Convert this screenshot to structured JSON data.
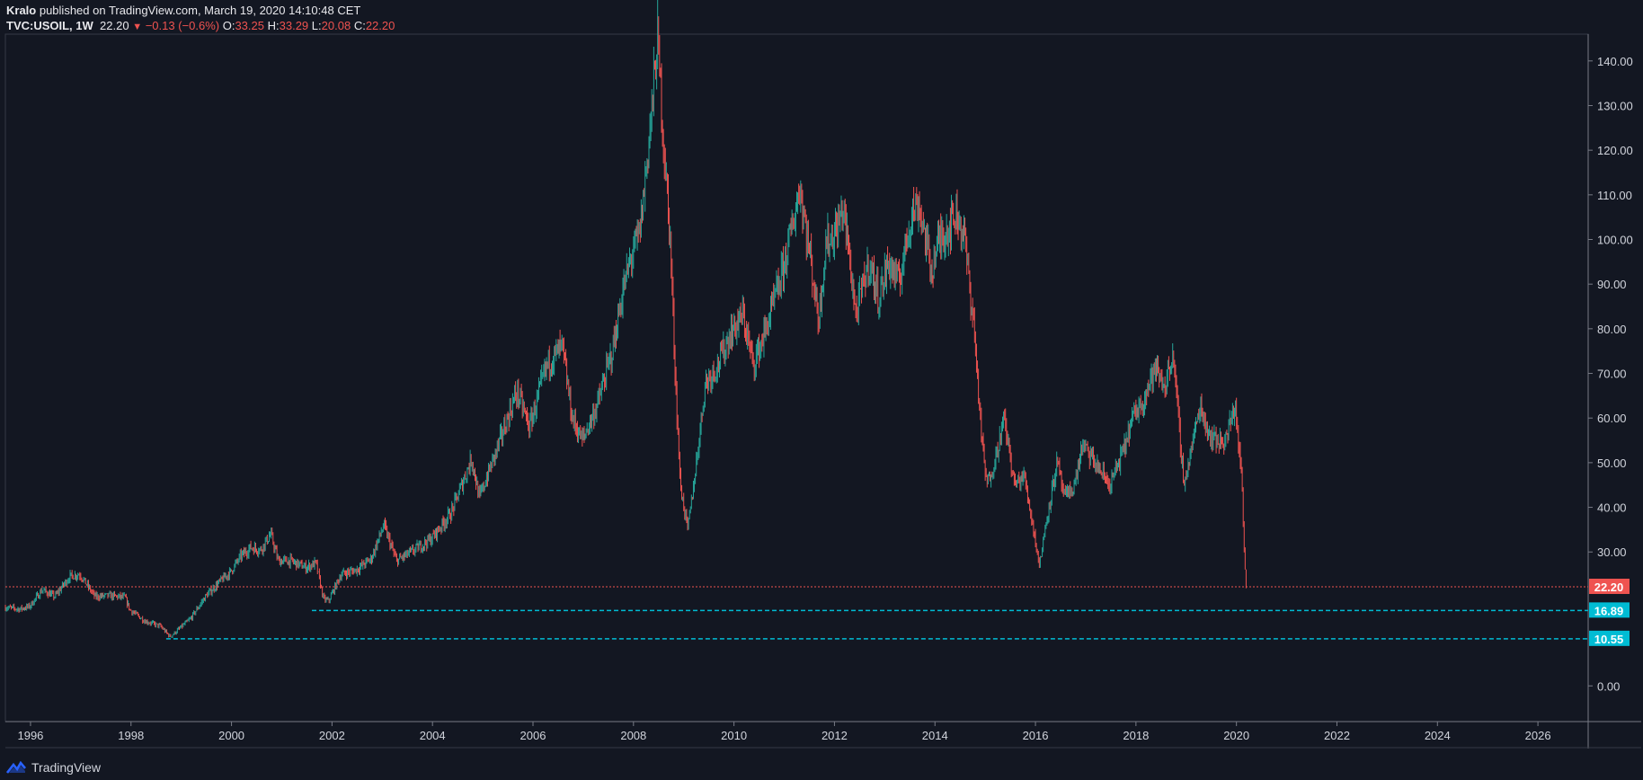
{
  "header": {
    "author": "Kralo",
    "published": " published on TradingView.com, March 19, 2020 14:10:48 CET",
    "symbol": "TVC:USOIL, 1W",
    "last": "22.20",
    "change": "−0.13 (−0.6%)",
    "o_label": "O:",
    "o_value": "33.25",
    "h_label": "H:",
    "h_value": "33.29",
    "l_label": "L:",
    "l_value": "20.08",
    "c_label": "C:",
    "c_value": "22.20"
  },
  "footer": {
    "brand": "TradingView"
  },
  "colors": {
    "background": "#131722",
    "up": "#26a69a",
    "down": "#ef5350",
    "support_line": "#00bcd4",
    "price_line": "#ef5350",
    "grid": "#363a45"
  },
  "chart_data": {
    "type": "candlestick",
    "timeframe": "1W",
    "ylim": [
      -8,
      146
    ],
    "xlim": [
      1995.5,
      2027.0
    ],
    "yticks": [
      "140.00",
      "130.00",
      "120.00",
      "110.00",
      "100.00",
      "90.00",
      "80.00",
      "70.00",
      "60.00",
      "50.00",
      "40.00",
      "30.00",
      "0.00"
    ],
    "xticks": [
      "1996",
      "1998",
      "2000",
      "2002",
      "2004",
      "2006",
      "2008",
      "2010",
      "2012",
      "2014",
      "2016",
      "2018",
      "2020",
      "2022",
      "2024",
      "2026"
    ],
    "price_series": [
      [
        1995.5,
        17.6
      ],
      [
        1995.8,
        17.2
      ],
      [
        1996.0,
        17.8
      ],
      [
        1996.25,
        21.5
      ],
      [
        1996.5,
        20.0
      ],
      [
        1996.8,
        24.5
      ],
      [
        1997.0,
        25.0
      ],
      [
        1997.3,
        20.0
      ],
      [
        1997.6,
        20.2
      ],
      [
        1997.9,
        19.8
      ],
      [
        1998.0,
        17.0
      ],
      [
        1998.3,
        14.5
      ],
      [
        1998.6,
        13.4
      ],
      [
        1998.8,
        11.0
      ],
      [
        1998.95,
        12.5
      ],
      [
        1999.2,
        15.0
      ],
      [
        1999.5,
        20.0
      ],
      [
        1999.8,
        23.5
      ],
      [
        2000.0,
        25.5
      ],
      [
        2000.2,
        29.0
      ],
      [
        2000.4,
        31.0
      ],
      [
        2000.6,
        30.5
      ],
      [
        2000.8,
        34.0
      ],
      [
        2000.95,
        28.0
      ],
      [
        2001.2,
        28.0
      ],
      [
        2001.5,
        26.5
      ],
      [
        2001.7,
        27.5
      ],
      [
        2001.85,
        19.5
      ],
      [
        2001.95,
        19.0
      ],
      [
        2002.2,
        25.0
      ],
      [
        2002.5,
        26.0
      ],
      [
        2002.8,
        28.5
      ],
      [
        2003.05,
        36.0
      ],
      [
        2003.3,
        28.0
      ],
      [
        2003.6,
        30.0
      ],
      [
        2004.0,
        33.0
      ],
      [
        2004.4,
        39.0
      ],
      [
        2004.8,
        51.0
      ],
      [
        2004.95,
        42.0
      ],
      [
        2005.3,
        53.0
      ],
      [
        2005.7,
        66.0
      ],
      [
        2005.95,
        58.0
      ],
      [
        2006.3,
        72.0
      ],
      [
        2006.6,
        76.0
      ],
      [
        2006.8,
        60.0
      ],
      [
        2007.0,
        55.0
      ],
      [
        2007.3,
        63.0
      ],
      [
        2007.6,
        75.0
      ],
      [
        2007.8,
        88.0
      ],
      [
        2007.95,
        95.0
      ],
      [
        2008.15,
        102.0
      ],
      [
        2008.35,
        125.0
      ],
      [
        2008.5,
        145.0
      ],
      [
        2008.6,
        125.0
      ],
      [
        2008.75,
        100.0
      ],
      [
        2008.85,
        70.0
      ],
      [
        2008.95,
        45.0
      ],
      [
        2009.1,
        35.0
      ],
      [
        2009.25,
        48.0
      ],
      [
        2009.45,
        68.0
      ],
      [
        2009.7,
        72.0
      ],
      [
        2009.95,
        79.0
      ],
      [
        2010.2,
        83.0
      ],
      [
        2010.4,
        72.0
      ],
      [
        2010.6,
        78.0
      ],
      [
        2010.95,
        91.0
      ],
      [
        2011.2,
        104.0
      ],
      [
        2011.33,
        112.0
      ],
      [
        2011.55,
        95.0
      ],
      [
        2011.7,
        82.0
      ],
      [
        2011.85,
        99.0
      ],
      [
        2012.05,
        102.0
      ],
      [
        2012.2,
        107.0
      ],
      [
        2012.45,
        83.0
      ],
      [
        2012.7,
        95.0
      ],
      [
        2012.9,
        87.0
      ],
      [
        2013.1,
        95.0
      ],
      [
        2013.3,
        90.0
      ],
      [
        2013.55,
        106.0
      ],
      [
        2013.7,
        108.0
      ],
      [
        2013.95,
        93.0
      ],
      [
        2014.1,
        100.0
      ],
      [
        2014.3,
        103.0
      ],
      [
        2014.45,
        106.0
      ],
      [
        2014.6,
        101.0
      ],
      [
        2014.8,
        80.0
      ],
      [
        2014.95,
        55.0
      ],
      [
        2015.05,
        45.0
      ],
      [
        2015.2,
        50.0
      ],
      [
        2015.4,
        60.0
      ],
      [
        2015.6,
        45.0
      ],
      [
        2015.8,
        47.0
      ],
      [
        2015.95,
        37.0
      ],
      [
        2016.1,
        27.0
      ],
      [
        2016.25,
        38.0
      ],
      [
        2016.45,
        50.0
      ],
      [
        2016.6,
        42.0
      ],
      [
        2016.8,
        45.0
      ],
      [
        2016.95,
        54.0
      ],
      [
        2017.2,
        50.0
      ],
      [
        2017.5,
        45.0
      ],
      [
        2017.75,
        52.0
      ],
      [
        2017.95,
        60.0
      ],
      [
        2018.15,
        64.0
      ],
      [
        2018.4,
        71.0
      ],
      [
        2018.6,
        67.0
      ],
      [
        2018.75,
        75.0
      ],
      [
        2018.9,
        55.0
      ],
      [
        2018.98,
        45.0
      ],
      [
        2019.1,
        52.0
      ],
      [
        2019.3,
        63.0
      ],
      [
        2019.45,
        57.0
      ],
      [
        2019.6,
        55.0
      ],
      [
        2019.8,
        55.0
      ],
      [
        2019.95,
        61.0
      ],
      [
        2020.0,
        63.0
      ],
      [
        2020.05,
        55.0
      ],
      [
        2020.12,
        48.0
      ],
      [
        2020.17,
        31.0
      ],
      [
        2020.21,
        22.2
      ]
    ],
    "horizontal_lines": [
      {
        "label": "22.20",
        "value": 22.2,
        "style": "dotted",
        "color": "#ef5350"
      },
      {
        "label": "16.89",
        "value": 16.89,
        "style": "dashed",
        "color": "#00bcd4",
        "from_x": 2001.6
      },
      {
        "label": "10.55",
        "value": 10.55,
        "style": "dashed",
        "color": "#00bcd4",
        "from_x": 1998.7
      }
    ],
    "last_price": "22.20"
  }
}
